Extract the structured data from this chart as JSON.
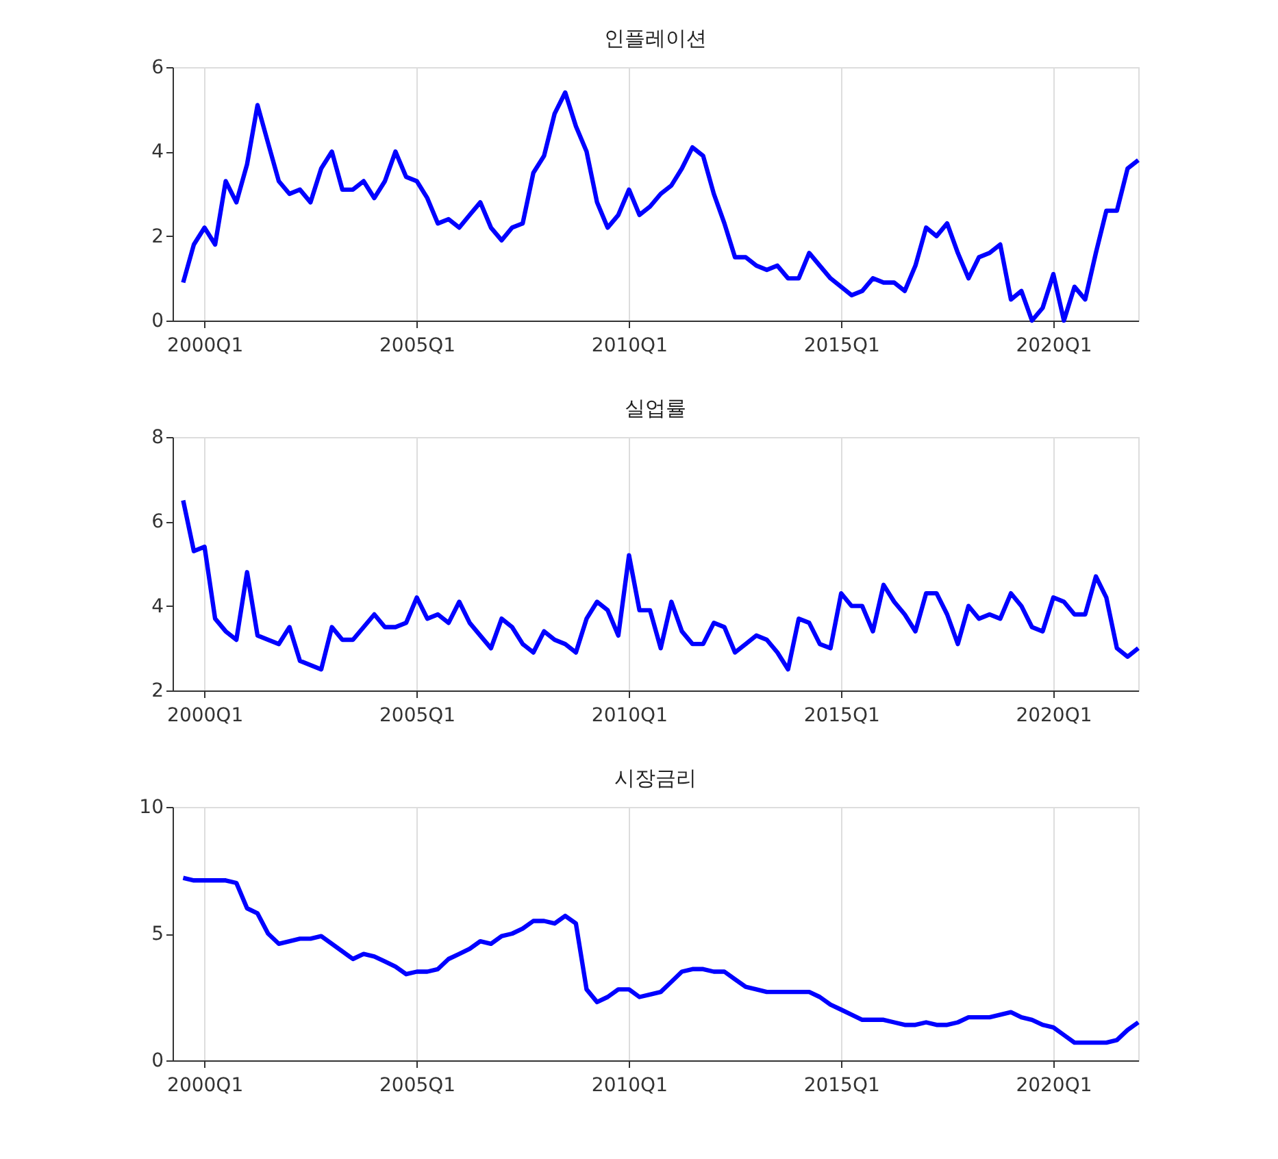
{
  "chart_data": [
    {
      "type": "line",
      "title": "인플레이션",
      "color": "#0000ff",
      "grid": "x",
      "x": [
        "1999-07",
        "1999-10",
        "2000-01",
        "2000-04",
        "2000-07",
        "2000-10",
        "2001-01",
        "2001-04",
        "2001-07",
        "2001-10",
        "2002-01",
        "2002-04",
        "2002-07",
        "2002-10",
        "2003-01",
        "2003-04",
        "2003-07",
        "2003-10",
        "2004-01",
        "2004-04",
        "2004-07",
        "2004-10",
        "2005-01",
        "2005-04",
        "2005-07",
        "2005-10",
        "2006-01",
        "2006-04",
        "2006-07",
        "2006-10",
        "2007-01",
        "2007-04",
        "2007-07",
        "2007-10",
        "2008-01",
        "2008-04",
        "2008-07",
        "2008-10",
        "2009-01",
        "2009-04",
        "2009-07",
        "2009-10",
        "2010-01",
        "2010-04",
        "2010-07",
        "2010-10",
        "2011-01",
        "2011-04",
        "2011-07",
        "2011-10",
        "2012-01",
        "2012-04",
        "2012-07",
        "2012-10",
        "2013-01",
        "2013-04",
        "2013-07",
        "2013-10",
        "2014-01",
        "2014-04",
        "2014-07",
        "2014-10",
        "2015-01",
        "2015-04",
        "2015-07",
        "2015-10",
        "2016-01",
        "2016-04",
        "2016-07",
        "2016-10",
        "2017-01",
        "2017-04",
        "2017-07",
        "2017-10",
        "2018-01",
        "2018-04",
        "2018-07",
        "2018-10",
        "2019-01",
        "2019-04",
        "2019-07",
        "2019-10",
        "2020-01",
        "2020-04",
        "2020-07",
        "2020-10",
        "2021-01",
        "2021-04",
        "2021-07",
        "2021-10",
        "2022-01"
      ],
      "values": [
        0.9,
        1.8,
        2.2,
        1.8,
        3.3,
        2.8,
        3.7,
        5.1,
        4.2,
        3.3,
        3.0,
        3.1,
        2.8,
        3.6,
        4.0,
        3.1,
        3.1,
        3.3,
        2.9,
        3.3,
        4.0,
        3.4,
        3.3,
        2.9,
        2.3,
        2.4,
        2.2,
        2.5,
        2.8,
        2.2,
        1.9,
        2.2,
        2.3,
        3.5,
        3.9,
        4.9,
        5.4,
        4.6,
        4.0,
        2.8,
        2.2,
        2.5,
        3.1,
        2.5,
        2.7,
        3.0,
        3.2,
        3.6,
        4.1,
        3.9,
        3.0,
        2.3,
        1.5,
        1.5,
        1.3,
        1.2,
        1.3,
        1.0,
        1.0,
        1.6,
        1.3,
        1.0,
        0.8,
        0.6,
        0.7,
        1.0,
        0.9,
        0.9,
        0.7,
        1.3,
        2.2,
        2.0,
        2.3,
        1.6,
        1.0,
        1.5,
        1.6,
        1.8,
        0.5,
        0.7,
        0.0,
        0.3,
        1.1,
        0.0,
        0.8,
        0.5,
        1.6,
        2.6,
        2.6,
        3.6,
        3.8
      ],
      "xlim": [
        "1999-04",
        "2022-01"
      ],
      "xticks": [
        {
          "value": "2000-01",
          "label": "2000Q1"
        },
        {
          "value": "2005-01",
          "label": "2005Q1"
        },
        {
          "value": "2010-01",
          "label": "2010Q1"
        },
        {
          "value": "2015-01",
          "label": "2015Q1"
        },
        {
          "value": "2020-01",
          "label": "2020Q1"
        }
      ],
      "ylim": [
        0,
        6
      ],
      "yticks": [
        0,
        2,
        4,
        6
      ]
    },
    {
      "type": "line",
      "title": "실업률",
      "color": "#0000ff",
      "grid": "x",
      "x": [
        "1999-07",
        "1999-10",
        "2000-01",
        "2000-04",
        "2000-07",
        "2000-10",
        "2001-01",
        "2001-04",
        "2001-07",
        "2001-10",
        "2002-01",
        "2002-04",
        "2002-07",
        "2002-10",
        "2003-01",
        "2003-04",
        "2003-07",
        "2003-10",
        "2004-01",
        "2004-04",
        "2004-07",
        "2004-10",
        "2005-01",
        "2005-04",
        "2005-07",
        "2005-10",
        "2006-01",
        "2006-04",
        "2006-07",
        "2006-10",
        "2007-01",
        "2007-04",
        "2007-07",
        "2007-10",
        "2008-01",
        "2008-04",
        "2008-07",
        "2008-10",
        "2009-01",
        "2009-04",
        "2009-07",
        "2009-10",
        "2010-01",
        "2010-04",
        "2010-07",
        "2010-10",
        "2011-01",
        "2011-04",
        "2011-07",
        "2011-10",
        "2012-01",
        "2012-04",
        "2012-07",
        "2012-10",
        "2013-01",
        "2013-04",
        "2013-07",
        "2013-10",
        "2014-01",
        "2014-04",
        "2014-07",
        "2014-10",
        "2015-01",
        "2015-04",
        "2015-07",
        "2015-10",
        "2016-01",
        "2016-04",
        "2016-07",
        "2016-10",
        "2017-01",
        "2017-04",
        "2017-07",
        "2017-10",
        "2018-01",
        "2018-04",
        "2018-07",
        "2018-10",
        "2019-01",
        "2019-04",
        "2019-07",
        "2019-10",
        "2020-01",
        "2020-04",
        "2020-07",
        "2020-10",
        "2021-01",
        "2021-04",
        "2021-07",
        "2021-10",
        "2022-01"
      ],
      "values": [
        6.5,
        5.3,
        5.4,
        3.7,
        3.4,
        3.2,
        4.8,
        3.3,
        3.2,
        3.1,
        3.5,
        2.7,
        2.6,
        2.5,
        3.5,
        3.2,
        3.2,
        3.5,
        3.8,
        3.5,
        3.5,
        3.6,
        4.2,
        3.7,
        3.8,
        3.6,
        4.1,
        3.6,
        3.3,
        3.0,
        3.7,
        3.5,
        3.1,
        2.9,
        3.4,
        3.2,
        3.1,
        2.9,
        3.7,
        4.1,
        3.9,
        3.3,
        5.2,
        3.9,
        3.9,
        3.0,
        4.1,
        3.4,
        3.1,
        3.1,
        3.6,
        3.5,
        2.9,
        3.1,
        3.3,
        3.2,
        2.9,
        2.5,
        3.7,
        3.6,
        3.1,
        3.0,
        4.3,
        4.0,
        4.0,
        3.4,
        4.5,
        4.1,
        3.8,
        3.4,
        4.3,
        4.3,
        3.8,
        3.1,
        4.0,
        3.7,
        3.8,
        3.7,
        4.3,
        4.0,
        3.5,
        3.4,
        4.2,
        4.1,
        3.8,
        3.8,
        4.7,
        4.2,
        3.0,
        2.8,
        3.0
      ],
      "xlim": [
        "1999-04",
        "2022-01"
      ],
      "xticks": [
        {
          "value": "2000-01",
          "label": "2000Q1"
        },
        {
          "value": "2005-01",
          "label": "2005Q1"
        },
        {
          "value": "2010-01",
          "label": "2010Q1"
        },
        {
          "value": "2015-01",
          "label": "2015Q1"
        },
        {
          "value": "2020-01",
          "label": "2020Q1"
        }
      ],
      "ylim": [
        2,
        8
      ],
      "yticks": [
        2,
        4,
        6,
        8
      ]
    },
    {
      "type": "line",
      "title": "시장금리",
      "color": "#0000ff",
      "grid": "x",
      "x": [
        "1999-07",
        "1999-10",
        "2000-01",
        "2000-04",
        "2000-07",
        "2000-10",
        "2001-01",
        "2001-04",
        "2001-07",
        "2001-10",
        "2002-01",
        "2002-04",
        "2002-07",
        "2002-10",
        "2003-01",
        "2003-04",
        "2003-07",
        "2003-10",
        "2004-01",
        "2004-04",
        "2004-07",
        "2004-10",
        "2005-01",
        "2005-04",
        "2005-07",
        "2005-10",
        "2006-01",
        "2006-04",
        "2006-07",
        "2006-10",
        "2007-01",
        "2007-04",
        "2007-07",
        "2007-10",
        "2008-01",
        "2008-04",
        "2008-07",
        "2008-10",
        "2009-01",
        "2009-04",
        "2009-07",
        "2009-10",
        "2010-01",
        "2010-04",
        "2010-07",
        "2010-10",
        "2011-01",
        "2011-04",
        "2011-07",
        "2011-10",
        "2012-01",
        "2012-04",
        "2012-07",
        "2012-10",
        "2013-01",
        "2013-04",
        "2013-07",
        "2013-10",
        "2014-01",
        "2014-04",
        "2014-07",
        "2014-10",
        "2015-01",
        "2015-04",
        "2015-07",
        "2015-10",
        "2016-01",
        "2016-04",
        "2016-07",
        "2016-10",
        "2017-01",
        "2017-04",
        "2017-07",
        "2017-10",
        "2018-01",
        "2018-04",
        "2018-07",
        "2018-10",
        "2019-01",
        "2019-04",
        "2019-07",
        "2019-10",
        "2020-01",
        "2020-04",
        "2020-07",
        "2020-10",
        "2021-01",
        "2021-04",
        "2021-07",
        "2021-10",
        "2022-01"
      ],
      "values": [
        7.2,
        7.1,
        7.1,
        7.1,
        7.1,
        7.0,
        6.0,
        5.8,
        5.0,
        4.6,
        4.7,
        4.8,
        4.8,
        4.9,
        4.6,
        4.3,
        4.0,
        4.2,
        4.1,
        3.9,
        3.7,
        3.4,
        3.5,
        3.5,
        3.6,
        4.0,
        4.2,
        4.4,
        4.7,
        4.6,
        4.9,
        5.0,
        5.2,
        5.5,
        5.5,
        5.4,
        5.7,
        5.4,
        2.8,
        2.3,
        2.5,
        2.8,
        2.8,
        2.5,
        2.6,
        2.7,
        3.1,
        3.5,
        3.6,
        3.6,
        3.5,
        3.5,
        3.2,
        2.9,
        2.8,
        2.7,
        2.7,
        2.7,
        2.7,
        2.7,
        2.5,
        2.2,
        2.0,
        1.8,
        1.6,
        1.6,
        1.6,
        1.5,
        1.4,
        1.4,
        1.5,
        1.4,
        1.4,
        1.5,
        1.7,
        1.7,
        1.7,
        1.8,
        1.9,
        1.7,
        1.6,
        1.4,
        1.3,
        1.0,
        0.7,
        0.7,
        0.7,
        0.7,
        0.8,
        1.2,
        1.5
      ],
      "xlim": [
        "1999-04",
        "2022-01"
      ],
      "xticks": [
        {
          "value": "2000-01",
          "label": "2000Q1"
        },
        {
          "value": "2005-01",
          "label": "2005Q1"
        },
        {
          "value": "2010-01",
          "label": "2010Q1"
        },
        {
          "value": "2015-01",
          "label": "2015Q1"
        },
        {
          "value": "2020-01",
          "label": "2020Q1"
        }
      ],
      "ylim": [
        0,
        10
      ],
      "yticks": [
        0,
        5,
        10
      ]
    }
  ]
}
